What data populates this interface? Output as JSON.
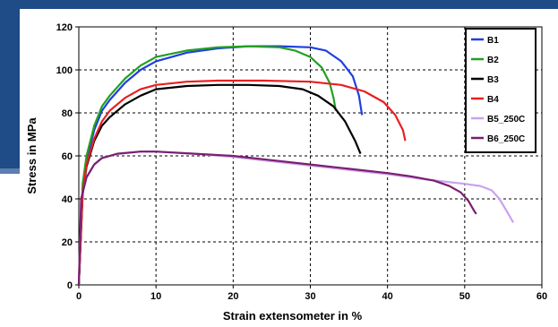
{
  "chart_data": {
    "type": "line",
    "title": "",
    "xlabel": "Strain extensometer in %",
    "ylabel": "Stress in MPa",
    "xlim": [
      0,
      60
    ],
    "ylim": [
      0,
      120
    ],
    "xticks": [
      "0",
      "10",
      "20",
      "30",
      "40",
      "50",
      "60"
    ],
    "yticks": [
      "0",
      "20",
      "40",
      "60",
      "80",
      "100",
      "120"
    ],
    "grid": "dashed",
    "legend_position": "top-right",
    "series": [
      {
        "name": "B1",
        "color": "#1f3fe0",
        "points": [
          [
            0,
            0
          ],
          [
            0.5,
            45
          ],
          [
            1,
            58
          ],
          [
            2,
            72
          ],
          [
            3,
            81
          ],
          [
            4,
            86
          ],
          [
            6,
            94
          ],
          [
            8,
            100
          ],
          [
            10,
            104
          ],
          [
            14,
            108
          ],
          [
            18,
            110
          ],
          [
            22,
            111
          ],
          [
            26,
            111
          ],
          [
            30,
            110.5
          ],
          [
            32,
            109
          ],
          [
            34,
            104
          ],
          [
            35.5,
            97
          ],
          [
            36.3,
            88
          ],
          [
            36.7,
            79
          ]
        ]
      },
      {
        "name": "B2",
        "color": "#22a022",
        "points": [
          [
            0,
            0
          ],
          [
            0.5,
            47
          ],
          [
            1,
            60
          ],
          [
            2,
            74
          ],
          [
            3,
            83
          ],
          [
            4,
            88
          ],
          [
            6,
            96
          ],
          [
            8,
            102
          ],
          [
            10,
            106
          ],
          [
            14,
            109
          ],
          [
            18,
            110.5
          ],
          [
            22,
            111
          ],
          [
            26,
            110.5
          ],
          [
            28,
            109
          ],
          [
            30,
            106
          ],
          [
            31.5,
            101
          ],
          [
            32.5,
            94
          ],
          [
            33,
            87
          ],
          [
            33.3,
            81
          ]
        ]
      },
      {
        "name": "B3",
        "color": "#000000",
        "points": [
          [
            0,
            0
          ],
          [
            0.5,
            42
          ],
          [
            1,
            55
          ],
          [
            2,
            67
          ],
          [
            3,
            74
          ],
          [
            4,
            78
          ],
          [
            6,
            84
          ],
          [
            8,
            88
          ],
          [
            10,
            91
          ],
          [
            14,
            92.5
          ],
          [
            18,
            93
          ],
          [
            22,
            93
          ],
          [
            26,
            92.5
          ],
          [
            29,
            91
          ],
          [
            31,
            88
          ],
          [
            33,
            83
          ],
          [
            34.5,
            76
          ],
          [
            35.8,
            67
          ],
          [
            36.5,
            61
          ]
        ]
      },
      {
        "name": "B4",
        "color": "#e82020",
        "points": [
          [
            0,
            0
          ],
          [
            0.5,
            43
          ],
          [
            1,
            56
          ],
          [
            2,
            68
          ],
          [
            3,
            76
          ],
          [
            4,
            81
          ],
          [
            6,
            87
          ],
          [
            8,
            91
          ],
          [
            10,
            93
          ],
          [
            14,
            94.5
          ],
          [
            18,
            95
          ],
          [
            24,
            95
          ],
          [
            30,
            94.5
          ],
          [
            34,
            93
          ],
          [
            37,
            90
          ],
          [
            39.5,
            85
          ],
          [
            41,
            79
          ],
          [
            42,
            72
          ],
          [
            42.3,
            67
          ]
        ]
      },
      {
        "name": "B5_250C",
        "color": "#c9a3ee",
        "points": [
          [
            0,
            0
          ],
          [
            0.3,
            40
          ],
          [
            1,
            50
          ],
          [
            2,
            56
          ],
          [
            3,
            59
          ],
          [
            5,
            61
          ],
          [
            8,
            62
          ],
          [
            10,
            62
          ],
          [
            15,
            61
          ],
          [
            20,
            59.5
          ],
          [
            25,
            57.5
          ],
          [
            30,
            55.5
          ],
          [
            35,
            53.5
          ],
          [
            40,
            51.5
          ],
          [
            45,
            49
          ],
          [
            50,
            47
          ],
          [
            52,
            46
          ],
          [
            53.5,
            44
          ],
          [
            54.5,
            40
          ],
          [
            55.5,
            34
          ],
          [
            56.3,
            29
          ]
        ]
      },
      {
        "name": "B6_250C",
        "color": "#7a1f70",
        "points": [
          [
            0,
            0
          ],
          [
            0.3,
            40
          ],
          [
            1,
            50
          ],
          [
            2,
            56
          ],
          [
            3,
            59
          ],
          [
            5,
            61
          ],
          [
            8,
            62
          ],
          [
            10,
            62
          ],
          [
            15,
            61
          ],
          [
            20,
            60
          ],
          [
            25,
            58
          ],
          [
            30,
            56
          ],
          [
            35,
            54
          ],
          [
            40,
            52
          ],
          [
            43,
            50.5
          ],
          [
            46,
            48.5
          ],
          [
            48,
            46
          ],
          [
            49.5,
            43
          ],
          [
            50.5,
            39
          ],
          [
            51.3,
            34
          ],
          [
            51.5,
            33
          ]
        ]
      }
    ]
  }
}
